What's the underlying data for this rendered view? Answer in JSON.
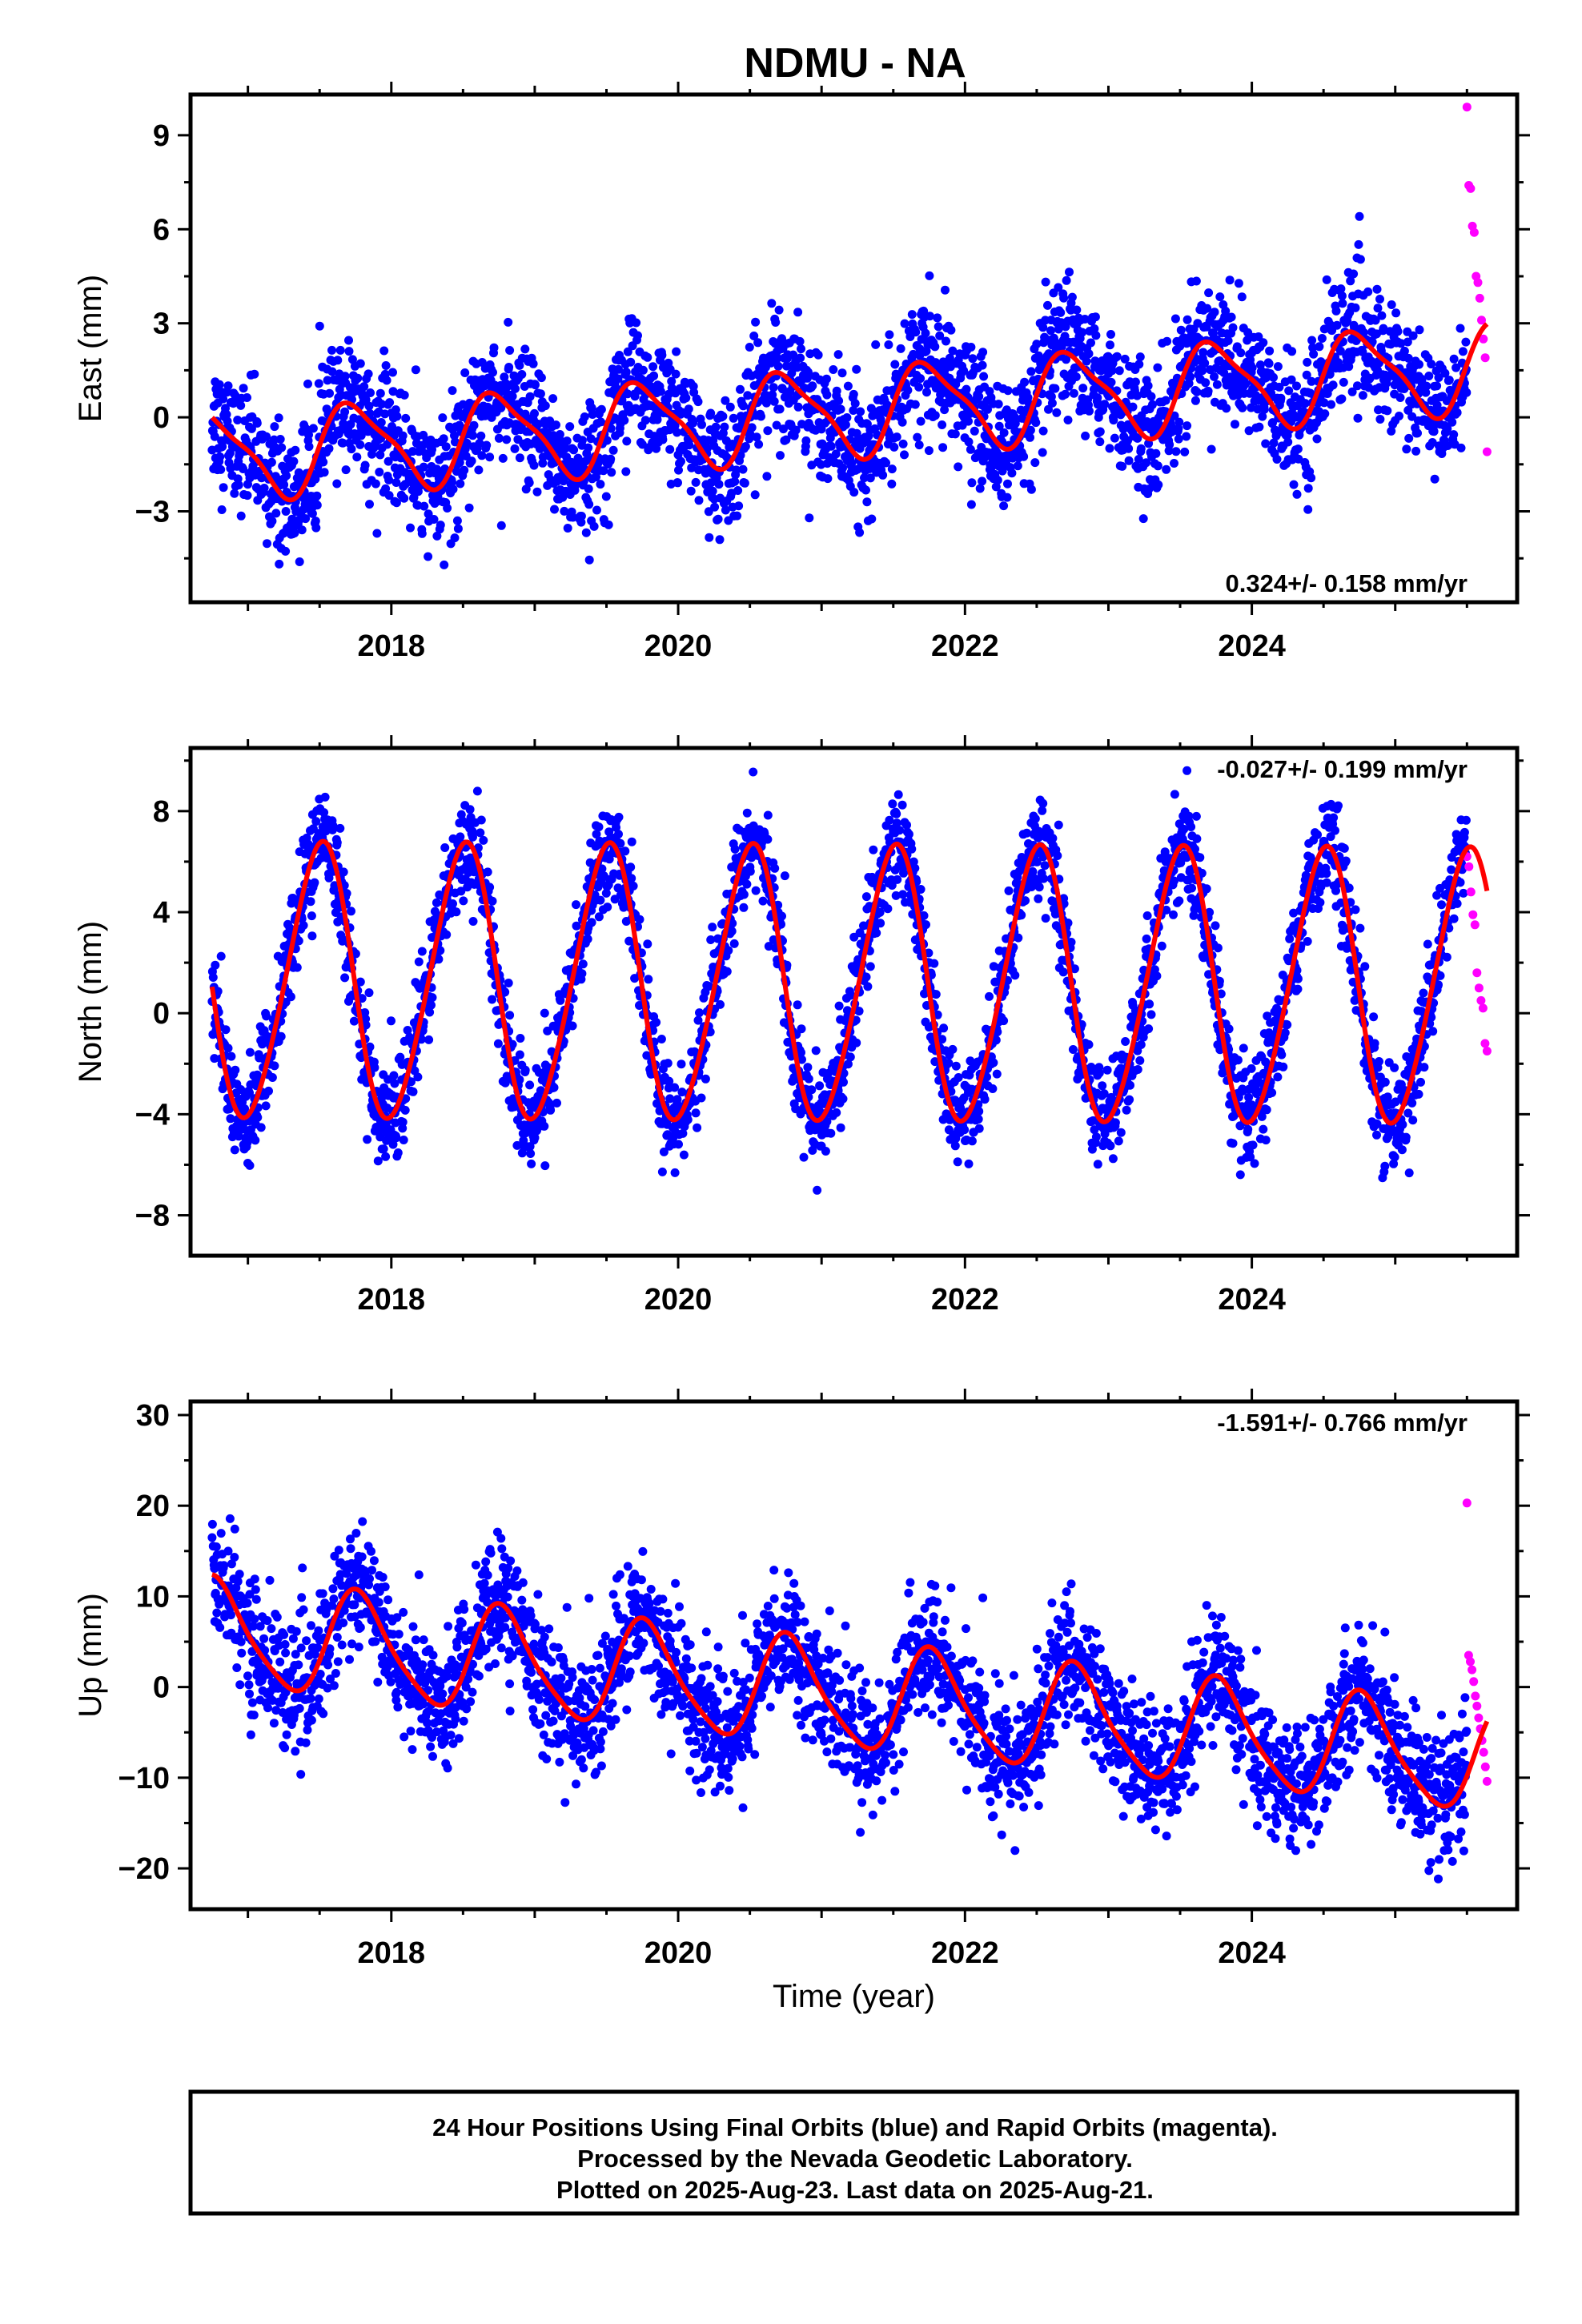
{
  "title": "NDMU - NA",
  "chart_data": [
    {
      "type": "scatter",
      "component": "East",
      "ylabel": "East (mm)",
      "xlim": [
        2016.6,
        2025.85
      ],
      "ylim": [
        -5.9,
        10.3
      ],
      "yticks": [
        -3,
        0,
        3,
        6,
        9
      ],
      "xticks": [
        2018,
        2020,
        2022,
        2024
      ],
      "rate_label": "0.324+/- 0.158 mm/yr",
      "model": {
        "offset": -1.25,
        "trend": 0.324,
        "annual_amp": 1.35,
        "annual_phase_year": 0.75,
        "semi_amp": 0.35,
        "semi_phase_year": 0.1,
        "scatter": 1.0
      },
      "final_orbit_span": [
        2016.75,
        2025.5
      ],
      "rapid_orbit_span": [
        2025.5,
        2025.64
      ],
      "rapid_orbit_values": [
        9.9,
        7.4,
        7.3,
        6.1,
        5.9,
        4.5,
        4.3,
        3.8,
        3.1,
        2.5,
        1.9,
        -1.1
      ],
      "colors": {
        "final": "#0000ff",
        "rapid": "#ff00ff",
        "fit": "#ff0000"
      }
    },
    {
      "type": "scatter",
      "component": "North",
      "ylabel": "North (mm)",
      "xlim": [
        2016.6,
        2025.85
      ],
      "ylim": [
        -9.6,
        10.5
      ],
      "yticks": [
        -8,
        -4,
        0,
        4,
        8
      ],
      "xticks": [
        2018,
        2020,
        2022,
        2024
      ],
      "rate_label": "-0.027+/- 0.199 mm/yr",
      "model": {
        "offset": 1.2,
        "trend": -0.027,
        "annual_amp": 5.4,
        "annual_phase_year": 0.5,
        "semi_amp": 0.5,
        "semi_phase_year": 0.1,
        "scatter": 1.0
      },
      "final_orbit_span": [
        2016.75,
        2025.5
      ],
      "rapid_orbit_span": [
        2025.5,
        2025.64
      ],
      "rapid_orbit_values": [
        6.2,
        5.8,
        4.8,
        3.9,
        3.5,
        1.6,
        1.0,
        0.5,
        0.2,
        -1.2,
        -1.5
      ],
      "colors": {
        "final": "#0000ff",
        "rapid": "#ff00ff",
        "fit": "#ff0000"
      }
    },
    {
      "type": "scatter",
      "component": "Up",
      "ylabel": "Up (mm)",
      "xlim": [
        2016.6,
        2025.85
      ],
      "ylim": [
        -24.5,
        31.5
      ],
      "yticks": [
        -20,
        -10,
        0,
        10,
        20,
        30
      ],
      "xticks": [
        2018,
        2020,
        2022,
        2024
      ],
      "xlabel": "Time (year)",
      "rate_label": "-1.591+/- 0.766 mm/yr",
      "model": {
        "offset": 6.0,
        "trend": -1.591,
        "annual_amp": 5.7,
        "annual_phase_year": 0.78,
        "semi_amp": 1.0,
        "semi_phase_year": 0.2,
        "scatter": 3.5
      },
      "final_orbit_span": [
        2016.75,
        2025.5
      ],
      "rapid_orbit_span": [
        2025.5,
        2025.64
      ],
      "rapid_orbit_values": [
        20.3,
        3.5,
        2.8,
        1.9,
        0.6,
        -1.0,
        -2.1,
        -3.4,
        -4.6,
        -5.9,
        -7.2,
        -8.8,
        -10.4
      ],
      "colors": {
        "final": "#0000ff",
        "rapid": "#ff00ff",
        "fit": "#ff0000"
      }
    }
  ],
  "caption": {
    "line1": "24 Hour Positions Using Final Orbits (blue) and Rapid Orbits (magenta).",
    "line2": "Processed by the Nevada Geodetic Laboratory.",
    "line3": "Plotted on 2025-Aug-23. Last data on 2025-Aug-21."
  }
}
